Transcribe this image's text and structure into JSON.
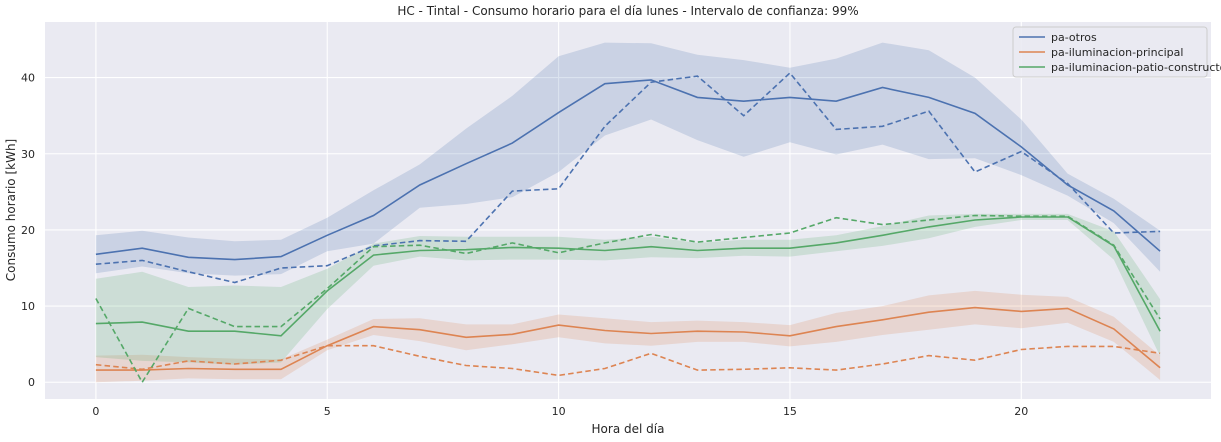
{
  "chart_data": {
    "type": "line",
    "title": "HC - Tintal - Consumo horario para el día lunes - Intervalo de confianza: 99%",
    "xlabel": "Hora del día",
    "ylabel": "Consumo horario [kWh]",
    "xlim": [
      -1.1,
      24.1
    ],
    "ylim": [
      -2.2,
      47.3
    ],
    "xticks": [
      0,
      5,
      10,
      15,
      20
    ],
    "yticks": [
      0,
      10,
      20,
      30,
      40
    ],
    "grid": true,
    "legend_position": "top-right",
    "x": [
      0,
      1,
      2,
      3,
      4,
      5,
      6,
      7,
      8,
      9,
      10,
      11,
      12,
      13,
      14,
      15,
      16,
      17,
      18,
      19,
      20,
      21,
      22,
      23
    ],
    "series": [
      {
        "name": "pa-otros",
        "color": "#4c72b0",
        "mean": [
          16.8,
          17.6,
          16.4,
          16.1,
          16.5,
          19.3,
          21.9,
          25.9,
          28.7,
          31.4,
          35.4,
          39.2,
          39.7,
          37.4,
          36.9,
          37.4,
          36.9,
          38.7,
          37.4,
          35.3,
          30.9,
          25.9,
          22.5,
          17.2
        ],
        "lower": [
          14.3,
          15.2,
          14.3,
          14.0,
          14.2,
          17.2,
          18.2,
          22.9,
          23.4,
          24.3,
          27.6,
          32.4,
          34.5,
          31.8,
          29.6,
          31.5,
          29.9,
          31.2,
          29.3,
          29.4,
          27.2,
          24.5,
          20.9,
          14.5
        ],
        "upper": [
          19.3,
          19.9,
          19.0,
          18.5,
          18.7,
          21.6,
          25.2,
          28.6,
          33.3,
          37.6,
          42.8,
          44.6,
          44.5,
          43.0,
          42.3,
          41.3,
          42.5,
          44.6,
          43.6,
          40.0,
          34.5,
          27.4,
          24.1,
          19.9
        ],
        "reference": [
          15.5,
          16.0,
          14.5,
          13.1,
          15.0,
          15.3,
          17.9,
          18.6,
          18.5,
          25.1,
          25.4,
          33.6,
          39.4,
          40.2,
          35.0,
          40.6,
          33.2,
          33.6,
          35.6,
          27.6,
          30.3,
          26.1,
          19.6,
          19.8
        ]
      },
      {
        "name": "pa-iluminacion-principal",
        "color": "#dd8452",
        "mean": [
          1.6,
          1.6,
          1.8,
          1.7,
          1.7,
          4.8,
          7.3,
          6.9,
          5.9,
          6.3,
          7.5,
          6.8,
          6.4,
          6.7,
          6.6,
          6.1,
          7.3,
          8.2,
          9.2,
          9.8,
          9.3,
          9.7,
          7.0,
          1.9
        ],
        "lower": [
          0.0,
          0.2,
          0.5,
          0.4,
          0.4,
          4.2,
          6.2,
          5.4,
          4.2,
          5.0,
          5.9,
          5.1,
          4.8,
          5.3,
          5.3,
          4.7,
          5.3,
          6.2,
          6.9,
          7.6,
          7.1,
          7.8,
          5.3,
          0.3
        ],
        "upper": [
          3.5,
          3.6,
          3.3,
          3.1,
          3.0,
          5.6,
          8.3,
          8.4,
          7.6,
          7.6,
          8.9,
          8.4,
          7.9,
          8.1,
          7.9,
          7.5,
          9.1,
          10.0,
          11.4,
          12.0,
          11.5,
          11.2,
          8.6,
          3.5
        ],
        "reference": [
          2.3,
          1.7,
          2.8,
          2.4,
          2.9,
          4.8,
          4.8,
          3.4,
          2.2,
          1.8,
          0.9,
          1.8,
          3.8,
          1.6,
          1.7,
          1.9,
          1.6,
          2.4,
          3.5,
          2.9,
          4.3,
          4.7,
          4.7,
          3.8
        ]
      },
      {
        "name": "pa-iluminacion-patio-constructor",
        "color": "#55a868",
        "mean": [
          7.7,
          7.9,
          6.7,
          6.7,
          6.1,
          12.0,
          16.7,
          17.3,
          17.4,
          17.7,
          17.6,
          17.3,
          17.8,
          17.3,
          17.6,
          17.6,
          18.3,
          19.3,
          20.4,
          21.3,
          21.7,
          21.7,
          17.9,
          6.7
        ],
        "lower": [
          3.3,
          2.8,
          2.6,
          2.3,
          2.6,
          9.6,
          15.3,
          16.5,
          16.0,
          16.1,
          16.1,
          16.0,
          16.4,
          16.3,
          16.6,
          16.5,
          17.2,
          17.9,
          18.9,
          20.4,
          21.3,
          21.3,
          16.1,
          3.4
        ],
        "upper": [
          13.6,
          14.5,
          12.5,
          12.7,
          12.5,
          14.9,
          18.2,
          19.2,
          19.1,
          19.1,
          19.1,
          18.7,
          19.1,
          18.3,
          18.7,
          18.7,
          19.3,
          20.5,
          21.9,
          22.1,
          22.1,
          22.1,
          19.8,
          10.9
        ],
        "reference": [
          11.0,
          0.0,
          9.7,
          7.3,
          7.3,
          12.3,
          17.8,
          18.0,
          16.9,
          18.3,
          17.0,
          18.3,
          19.4,
          18.4,
          19.0,
          19.6,
          21.6,
          20.7,
          21.3,
          21.9,
          21.8,
          21.8,
          18.0,
          8.3
        ]
      }
    ]
  }
}
